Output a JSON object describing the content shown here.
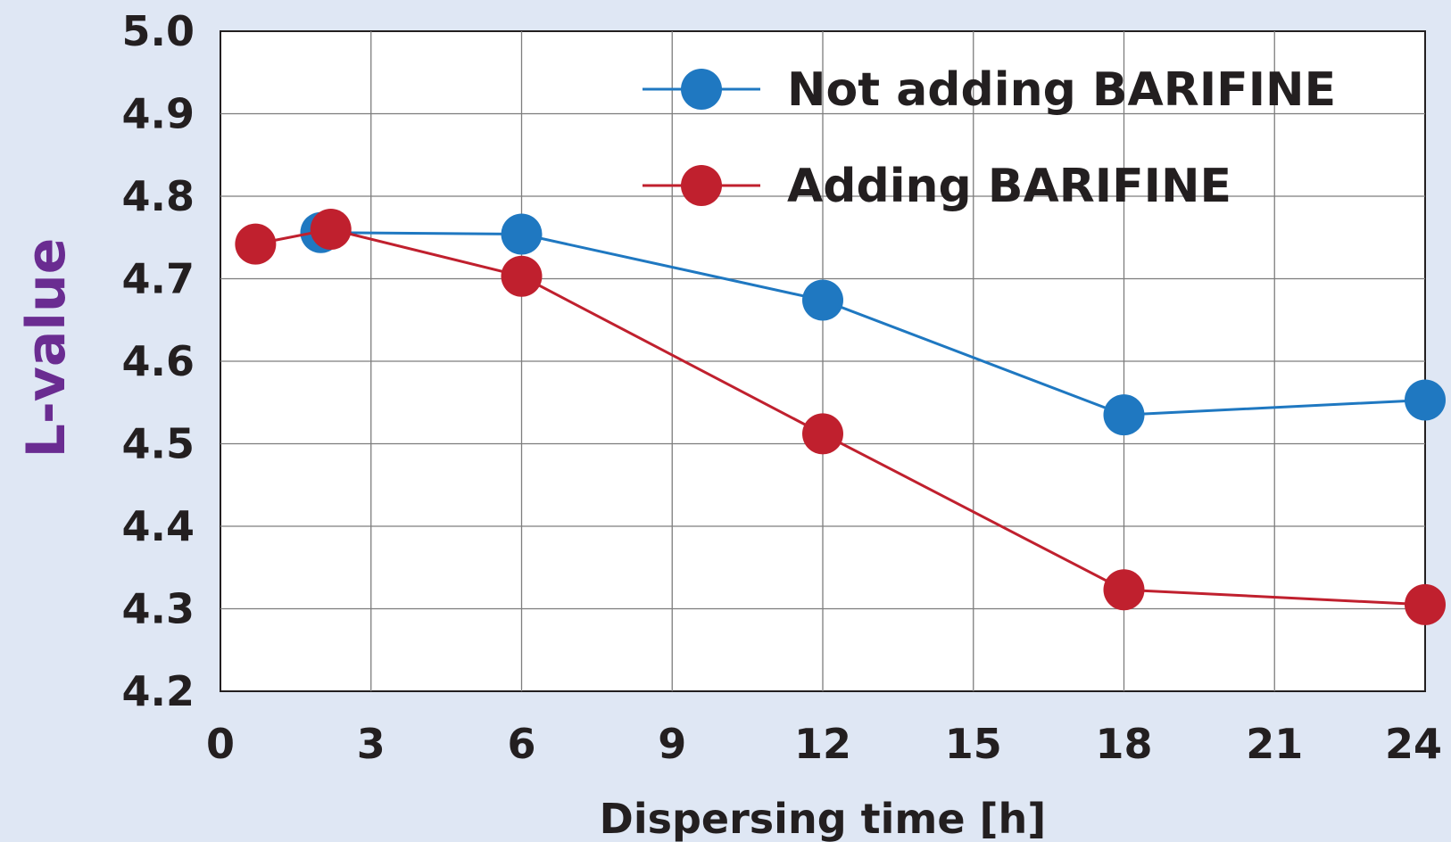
{
  "chart_data": {
    "type": "line",
    "xlabel": "Dispersing time [h]",
    "ylabel": "L-value",
    "xlim": [
      0,
      24
    ],
    "ylim": [
      4.2,
      5.0
    ],
    "xticks": [
      "0",
      "3",
      "6",
      "9",
      "12",
      "15",
      "18",
      "21",
      "24"
    ],
    "yticks": [
      "4.2",
      "4.3",
      "4.4",
      "4.5",
      "4.6",
      "4.7",
      "4.8",
      "4.9",
      "5.0"
    ],
    "grid": true,
    "legend_position": "top-right",
    "series": [
      {
        "name": "Not adding BARIFINE",
        "color": "#1f78c1",
        "x": [
          2,
          6,
          12,
          18,
          24
        ],
        "y": [
          4.756,
          4.754,
          4.674,
          4.535,
          4.553
        ]
      },
      {
        "name": "Adding BARIFINE",
        "color": "#c0202e",
        "x": [
          0.7,
          2.2,
          6,
          12,
          18,
          24
        ],
        "y": [
          4.742,
          4.76,
          4.703,
          4.512,
          4.323,
          4.305
        ]
      }
    ]
  },
  "colors": {
    "background": "#dfe7f4",
    "ylabel_color": "#6a2c91"
  }
}
